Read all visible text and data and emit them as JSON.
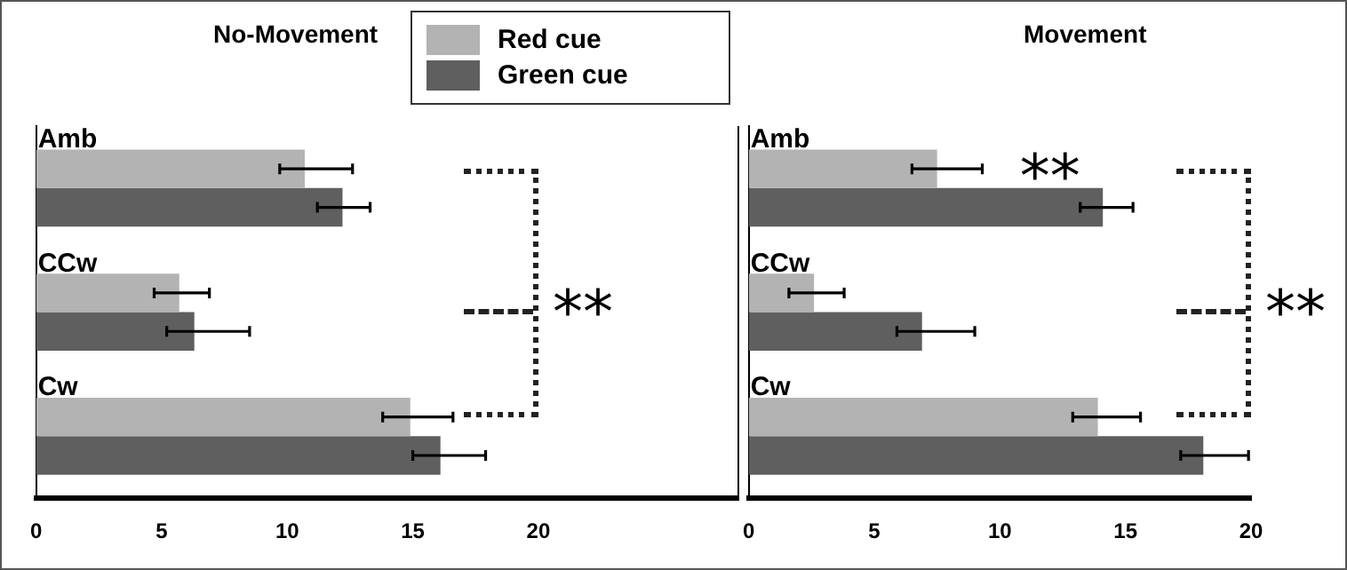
{
  "chart_data": [
    {
      "type": "bar",
      "orientation": "horizontal",
      "title": "No-Movement",
      "categories": [
        "Amb",
        "CCw",
        "Cw"
      ],
      "series": [
        {
          "name": "Red cue",
          "color": "#b3b3b3",
          "values": [
            10.7,
            5.7,
            14.9
          ],
          "errors": [
            [
              9.7,
              12.6
            ],
            [
              4.7,
              6.9
            ],
            [
              13.8,
              16.6
            ]
          ]
        },
        {
          "name": "Green cue",
          "color": "#5f5f5f",
          "values": [
            12.2,
            6.3,
            16.1
          ],
          "errors": [
            [
              11.2,
              13.3
            ],
            [
              5.2,
              8.5
            ],
            [
              15.0,
              17.9
            ]
          ]
        }
      ],
      "xlim": [
        0,
        28
      ],
      "xticks": [
        0,
        5,
        10,
        15,
        20
      ],
      "grid": false,
      "legend": "top right",
      "annotations": [
        "**"
      ]
    },
    {
      "type": "bar",
      "orientation": "horizontal",
      "title": "Movement",
      "categories": [
        "Amb",
        "CCw",
        "Cw"
      ],
      "series": [
        {
          "name": "Red cue",
          "color": "#b3b3b3",
          "values": [
            7.5,
            2.6,
            13.9
          ],
          "errors": [
            [
              6.5,
              9.3
            ],
            [
              1.6,
              3.8
            ],
            [
              12.9,
              15.6
            ]
          ]
        },
        {
          "name": "Green cue",
          "color": "#5f5f5f",
          "values": [
            14.1,
            6.9,
            18.1
          ],
          "errors": [
            [
              13.2,
              15.3
            ],
            [
              5.9,
              9.0
            ],
            [
              17.2,
              19.9
            ]
          ]
        }
      ],
      "xlim": [
        0,
        20
      ],
      "xticks": [
        0,
        5,
        10,
        15,
        20
      ],
      "grid": false,
      "annotations": [
        {
          "text": "**",
          "x": 12,
          "y": "Amb"
        },
        "**"
      ]
    }
  ]
}
